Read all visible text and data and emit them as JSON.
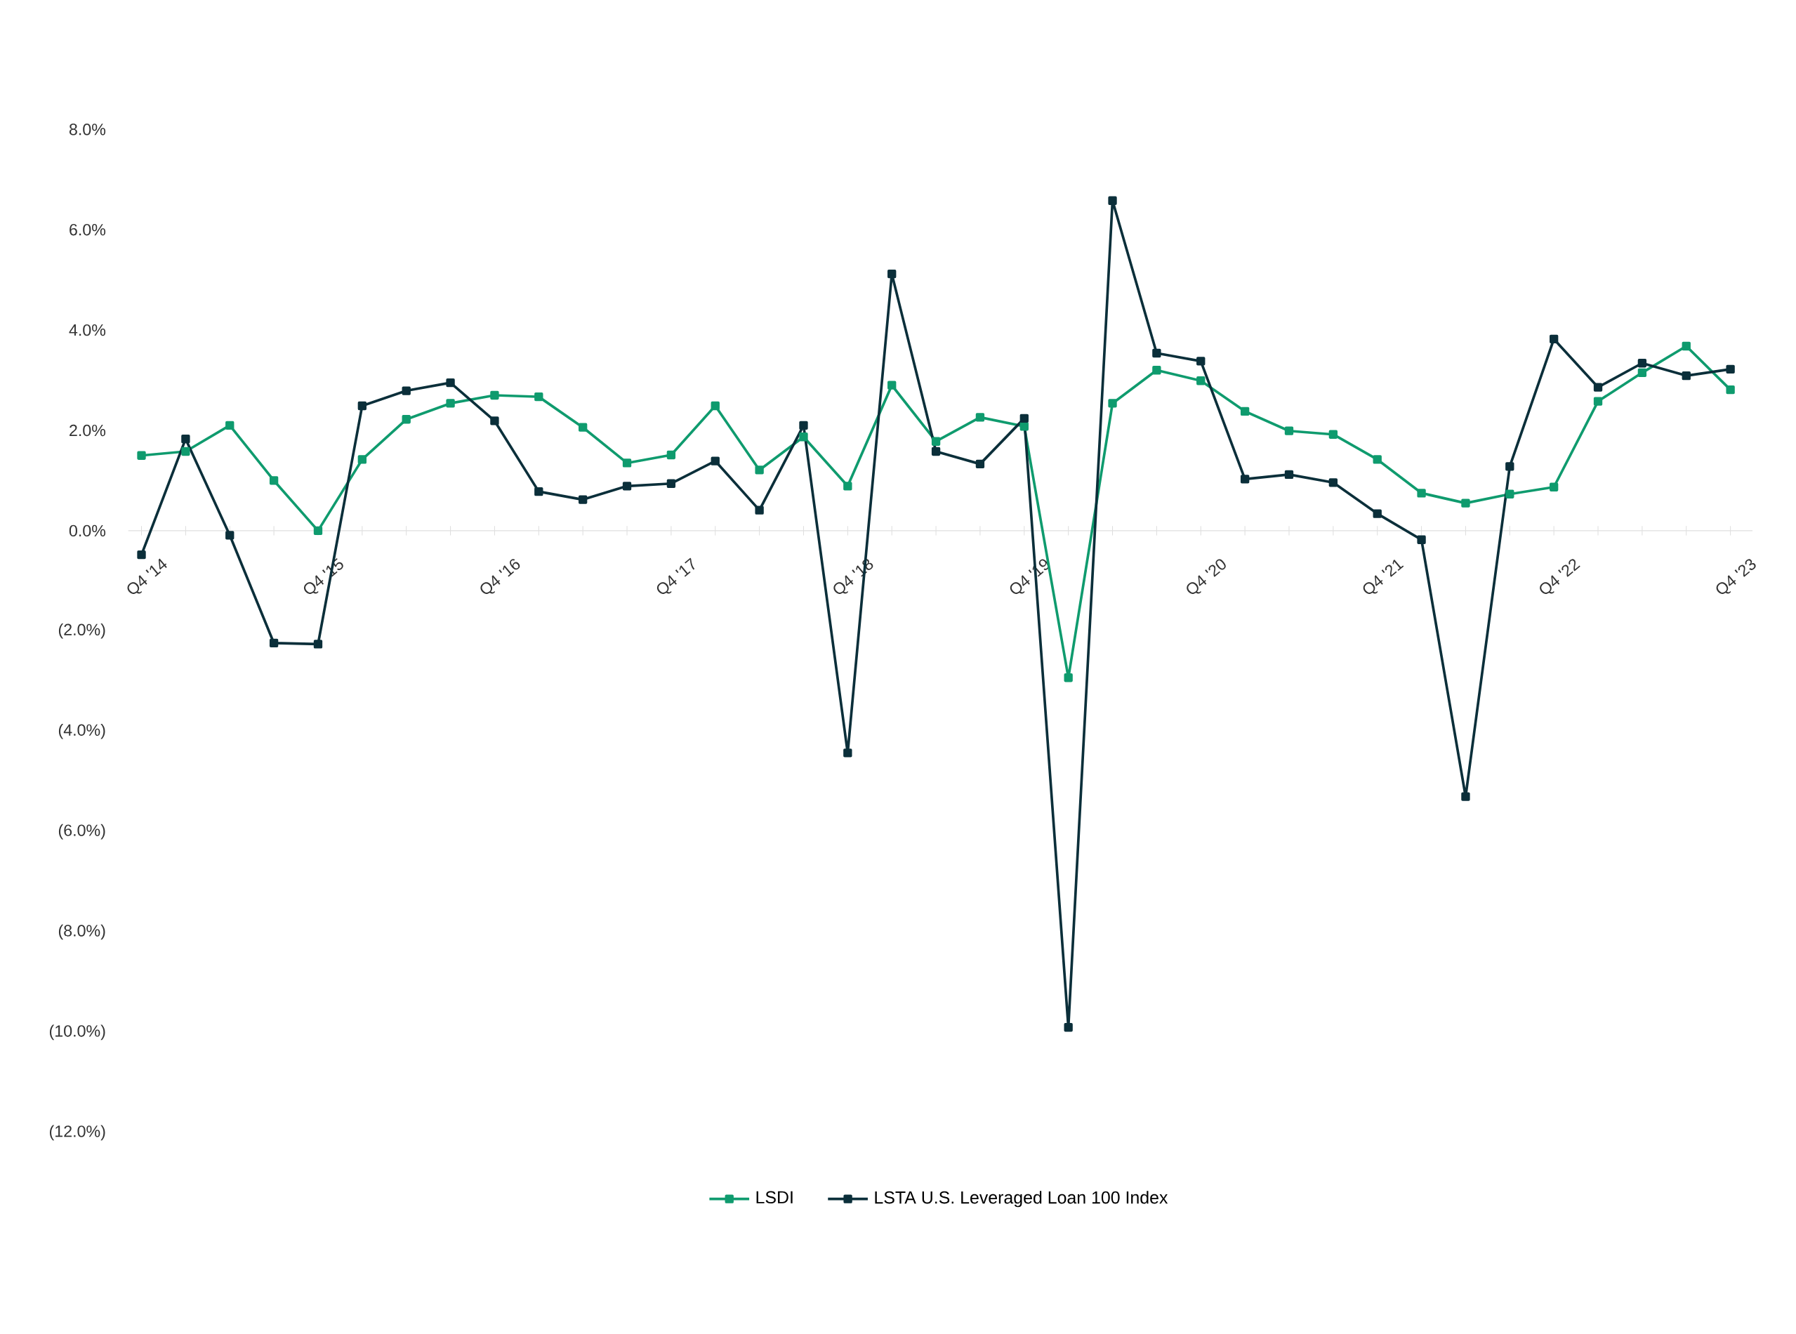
{
  "chart_data": {
    "type": "line",
    "categories": [
      "Q4 '14",
      null,
      null,
      null,
      "Q4 '15",
      null,
      null,
      null,
      "Q4 '16",
      null,
      null,
      null,
      "Q4 '17",
      null,
      null,
      null,
      "Q4 '18",
      null,
      null,
      null,
      "Q4 '19",
      null,
      null,
      null,
      "Q4 '20",
      null,
      null,
      null,
      "Q4 '21",
      null,
      null,
      null,
      "Q4 '22",
      null,
      null,
      null,
      "Q4 '23"
    ],
    "series": [
      {
        "name": "LSDI",
        "color": "#0f9b6e",
        "values": [
          1.5,
          1.58,
          2.1,
          1.0,
          0.0,
          1.42,
          2.22,
          2.54,
          2.7,
          2.67,
          2.06,
          1.35,
          1.51,
          2.49,
          1.21,
          1.87,
          0.89,
          2.9,
          1.78,
          2.26,
          2.08,
          -2.93,
          2.54,
          3.2,
          2.99,
          2.38,
          1.99,
          1.92,
          1.42,
          0.75,
          0.55,
          0.73,
          0.87,
          2.58,
          3.15,
          3.68,
          2.81
        ]
      },
      {
        "name": "LSTA U.S. Leveraged Loan 100 Index",
        "color": "#0b2f3a",
        "values": [
          -0.48,
          1.83,
          -0.09,
          -2.24,
          -2.26,
          2.49,
          2.79,
          2.95,
          2.19,
          0.78,
          0.62,
          0.89,
          0.94,
          1.39,
          0.41,
          2.1,
          -4.43,
          5.12,
          1.58,
          1.33,
          2.24,
          -9.9,
          6.58,
          3.54,
          3.38,
          1.03,
          1.12,
          0.96,
          0.34,
          -0.18,
          -5.3,
          1.28,
          3.82,
          2.86,
          3.34,
          3.09,
          3.22
        ]
      }
    ],
    "ylim": [
      -12,
      8
    ],
    "yticks": [
      {
        "value": 8,
        "label": "8.0%"
      },
      {
        "value": 6,
        "label": "6.0%"
      },
      {
        "value": 4,
        "label": "4.0%"
      },
      {
        "value": 2,
        "label": "2.0%"
      },
      {
        "value": 0,
        "label": "0.0%"
      },
      {
        "value": -2,
        "label": "(2.0%)"
      },
      {
        "value": -4,
        "label": "(4.0%)"
      },
      {
        "value": -6,
        "label": "(6.0%)"
      },
      {
        "value": -8,
        "label": "(8.0%)"
      },
      {
        "value": -10,
        "label": "(10.0%)"
      },
      {
        "value": -12,
        "label": "(12.0%)"
      }
    ],
    "grid": false,
    "legend": "bottom",
    "marker": "square",
    "line_style": "solid"
  }
}
